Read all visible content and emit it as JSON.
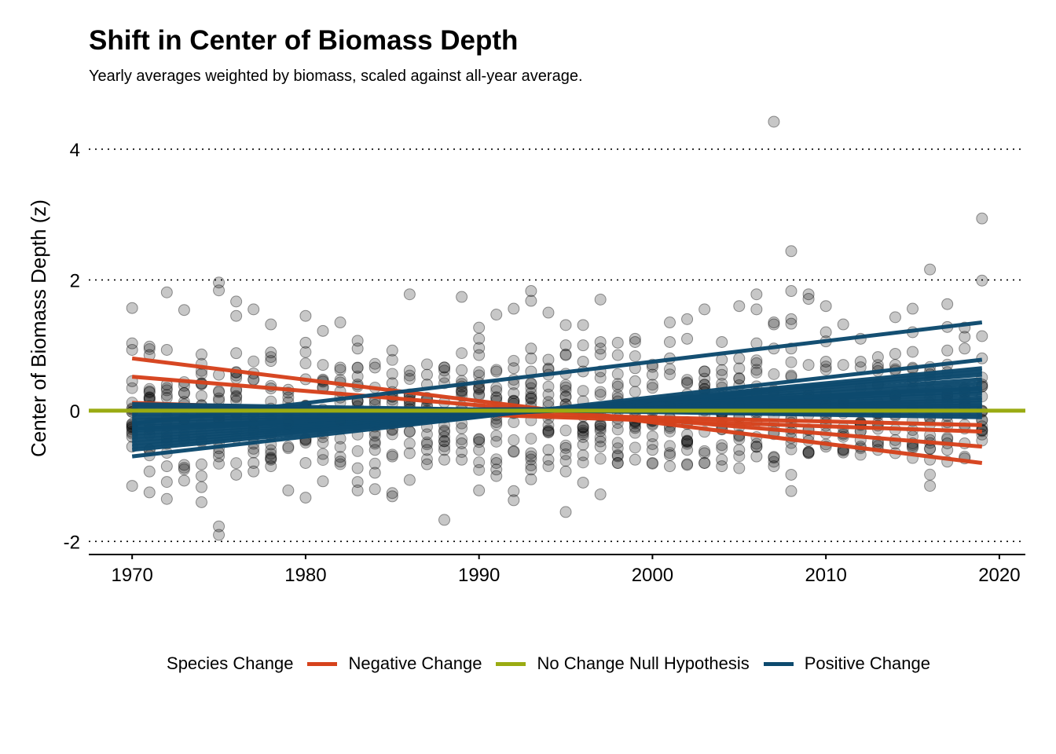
{
  "title": "Shift in Center of Biomass Depth",
  "subtitle": "Yearly averages weighted by biomass, scaled against all-year average.",
  "legend": {
    "title": "Species Change",
    "items": [
      {
        "label": "Negative Change",
        "color": "#d6421c"
      },
      {
        "label": "No Change Null Hypothesis",
        "color": "#9aab12"
      },
      {
        "label": "Positive Change",
        "color": "#0d4a6e"
      }
    ]
  },
  "chart_data": {
    "type": "scatter",
    "title": "Shift in Center of Biomass Depth",
    "subtitle": "Yearly averages weighted by biomass, scaled against all-year average.",
    "xlabel": "",
    "ylabel": "Center of Biomass Depth (z)",
    "xlim": [
      1967.5,
      2021.5
    ],
    "ylim": [
      -2.2,
      4.6
    ],
    "x_ticks": [
      1970,
      1980,
      1990,
      2000,
      2010,
      2020
    ],
    "x_tick_labels": [
      "1970",
      "1980",
      "1990",
      "2000",
      "2010",
      "2020"
    ],
    "y_ticks": [
      -2,
      0,
      2,
      4
    ],
    "y_tick_labels": [
      "-2",
      "0",
      "2",
      "4"
    ],
    "grid": "horizontal dotted",
    "legend_position": "bottom",
    "null_hypothesis": {
      "y": 0,
      "x": [
        1967.5,
        2021.5
      ],
      "color": "#9aab12"
    },
    "trend_lines": [
      {
        "group": "Negative Change",
        "color": "#d6421c",
        "x": [
          1970,
          2019
        ],
        "y": [
          0.8,
          -0.8
        ]
      },
      {
        "group": "Negative Change",
        "color": "#d6421c",
        "x": [
          1970,
          2019
        ],
        "y": [
          0.52,
          -0.55
        ]
      },
      {
        "group": "Negative Change",
        "color": "#d6421c",
        "x": [
          1970,
          2019
        ],
        "y": [
          0.12,
          -0.32
        ]
      },
      {
        "group": "Negative Change",
        "color": "#d6421c",
        "x": [
          1970,
          2019
        ],
        "y": [
          0.08,
          -0.22
        ]
      },
      {
        "group": "Positive Change",
        "color": "#0d4a6e",
        "x": [
          1970,
          2019
        ],
        "y": [
          -0.2,
          1.35
        ]
      },
      {
        "group": "Positive Change",
        "color": "#0d4a6e",
        "x": [
          1970,
          2019
        ],
        "y": [
          -0.7,
          0.78
        ]
      },
      {
        "group": "Positive Change",
        "color": "#0d4a6e",
        "x": [
          1970,
          2019
        ],
        "y": [
          -0.6,
          0.65
        ]
      },
      {
        "group": "Positive Change",
        "color": "#0d4a6e",
        "x": [
          1970,
          2019
        ],
        "y": [
          -0.5,
          0.55
        ]
      },
      {
        "group": "Positive Change",
        "color": "#0d4a6e",
        "x": [
          1970,
          2019
        ],
        "y": [
          -0.45,
          0.48
        ]
      },
      {
        "group": "Positive Change",
        "color": "#0d4a6e",
        "x": [
          1970,
          2019
        ],
        "y": [
          -0.4,
          0.42
        ]
      },
      {
        "group": "Positive Change",
        "color": "#0d4a6e",
        "x": [
          1970,
          2019
        ],
        "y": [
          -0.35,
          0.36
        ]
      },
      {
        "group": "Positive Change",
        "color": "#0d4a6e",
        "x": [
          1970,
          2019
        ],
        "y": [
          -0.3,
          0.3
        ]
      },
      {
        "group": "Positive Change",
        "color": "#0d4a6e",
        "x": [
          1970,
          2019
        ],
        "y": [
          -0.25,
          0.26
        ]
      },
      {
        "group": "Positive Change",
        "color": "#0d4a6e",
        "x": [
          1970,
          2019
        ],
        "y": [
          -0.2,
          0.2
        ]
      },
      {
        "group": "Positive Change",
        "color": "#0d4a6e",
        "x": [
          1970,
          2019
        ],
        "y": [
          -0.15,
          0.16
        ]
      },
      {
        "group": "Positive Change",
        "color": "#0d4a6e",
        "x": [
          1970,
          2019
        ],
        "y": [
          -0.1,
          0.12
        ]
      },
      {
        "group": "Positive Change",
        "color": "#0d4a6e",
        "x": [
          1970,
          2019
        ],
        "y": [
          -0.05,
          0.08
        ]
      },
      {
        "group": "Positive Change",
        "color": "#0d4a6e",
        "x": [
          1970,
          2019
        ],
        "y": [
          0.0,
          0.05
        ]
      },
      {
        "group": "Positive Change",
        "color": "#0d4a6e",
        "x": [
          1970,
          2019
        ],
        "y": [
          0.05,
          -0.05
        ]
      },
      {
        "group": "Positive Change",
        "color": "#0d4a6e",
        "x": [
          1970,
          2019
        ],
        "y": [
          0.1,
          -0.1
        ]
      },
      {
        "group": "Positive Change",
        "color": "#0d4a6e",
        "x": [
          1970,
          2019
        ],
        "y": [
          -0.55,
          0.6
        ]
      },
      {
        "group": "Positive Change",
        "color": "#0d4a6e",
        "x": [
          1970,
          2019
        ],
        "y": [
          -0.28,
          0.34
        ]
      }
    ],
    "points": [
      {
        "x": 1970,
        "y": 1.57
      },
      {
        "x": 1970,
        "y": 1.03
      },
      {
        "x": 1970,
        "y": 0.93
      },
      {
        "x": 1970,
        "y": 0.45
      },
      {
        "x": 1970,
        "y": -0.4
      },
      {
        "x": 1970,
        "y": -0.55
      },
      {
        "x": 1970,
        "y": -1.15
      },
      {
        "x": 1971,
        "y": 0.98
      },
      {
        "x": 1971,
        "y": 0.85
      },
      {
        "x": 1971,
        "y": 0.28
      },
      {
        "x": 1971,
        "y": -0.6
      },
      {
        "x": 1971,
        "y": -0.93
      },
      {
        "x": 1971,
        "y": -1.25
      },
      {
        "x": 1972,
        "y": 1.81
      },
      {
        "x": 1972,
        "y": 0.93
      },
      {
        "x": 1972,
        "y": 0.4
      },
      {
        "x": 1972,
        "y": -0.85
      },
      {
        "x": 1972,
        "y": -1.09
      },
      {
        "x": 1972,
        "y": -1.35
      },
      {
        "x": 1973,
        "y": 1.54
      },
      {
        "x": 1973,
        "y": 0.27
      },
      {
        "x": 1973,
        "y": -0.45
      },
      {
        "x": 1973,
        "y": -0.83
      },
      {
        "x": 1973,
        "y": -1.07
      },
      {
        "x": 1974,
        "y": 0.86
      },
      {
        "x": 1974,
        "y": 0.42
      },
      {
        "x": 1974,
        "y": -0.82
      },
      {
        "x": 1974,
        "y": -1.0
      },
      {
        "x": 1974,
        "y": -1.17
      },
      {
        "x": 1974,
        "y": -1.4
      },
      {
        "x": 1975,
        "y": 1.96
      },
      {
        "x": 1975,
        "y": 1.84
      },
      {
        "x": 1975,
        "y": 0.55
      },
      {
        "x": 1975,
        "y": -0.7
      },
      {
        "x": 1975,
        "y": -1.77
      },
      {
        "x": 1975,
        "y": -1.9
      },
      {
        "x": 1976,
        "y": 1.67
      },
      {
        "x": 1976,
        "y": 1.45
      },
      {
        "x": 1976,
        "y": 0.88
      },
      {
        "x": 1976,
        "y": 0.59
      },
      {
        "x": 1976,
        "y": 0.33
      },
      {
        "x": 1976,
        "y": -0.98
      },
      {
        "x": 1977,
        "y": 1.55
      },
      {
        "x": 1977,
        "y": 0.57
      },
      {
        "x": 1977,
        "y": -0.8
      },
      {
        "x": 1977,
        "y": -0.93
      },
      {
        "x": 1978,
        "y": 1.32
      },
      {
        "x": 1978,
        "y": 0.89
      },
      {
        "x": 1978,
        "y": 0.76
      },
      {
        "x": 1978,
        "y": 0.34
      },
      {
        "x": 1978,
        "y": -0.75
      },
      {
        "x": 1978,
        "y": -0.85
      },
      {
        "x": 1979,
        "y": 0.32
      },
      {
        "x": 1979,
        "y": -0.55
      },
      {
        "x": 1979,
        "y": -1.22
      },
      {
        "x": 1980,
        "y": 1.45
      },
      {
        "x": 1980,
        "y": 1.04
      },
      {
        "x": 1980,
        "y": 0.48
      },
      {
        "x": 1980,
        "y": -0.8
      },
      {
        "x": 1980,
        "y": -1.33
      },
      {
        "x": 1981,
        "y": 1.22
      },
      {
        "x": 1981,
        "y": 0.7
      },
      {
        "x": 1981,
        "y": 0.36
      },
      {
        "x": 1981,
        "y": -1.08
      },
      {
        "x": 1982,
        "y": 1.35
      },
      {
        "x": 1982,
        "y": 0.66
      },
      {
        "x": 1982,
        "y": 0.2
      },
      {
        "x": 1982,
        "y": -0.78
      },
      {
        "x": 1983,
        "y": 1.07
      },
      {
        "x": 1983,
        "y": 0.95
      },
      {
        "x": 1983,
        "y": 0.4
      },
      {
        "x": 1983,
        "y": -0.88
      },
      {
        "x": 1983,
        "y": -1.09
      },
      {
        "x": 1983,
        "y": -1.22
      },
      {
        "x": 1984,
        "y": 0.66
      },
      {
        "x": 1984,
        "y": -0.6
      },
      {
        "x": 1984,
        "y": -0.95
      },
      {
        "x": 1984,
        "y": -1.2
      },
      {
        "x": 1985,
        "y": 0.92
      },
      {
        "x": 1985,
        "y": 0.42
      },
      {
        "x": 1985,
        "y": -0.7
      },
      {
        "x": 1985,
        "y": -1.26
      },
      {
        "x": 1985,
        "y": -1.31
      },
      {
        "x": 1986,
        "y": 1.78
      },
      {
        "x": 1986,
        "y": 0.61
      },
      {
        "x": 1986,
        "y": 0.25
      },
      {
        "x": 1986,
        "y": -0.65
      },
      {
        "x": 1986,
        "y": -1.06
      },
      {
        "x": 1987,
        "y": 0.55
      },
      {
        "x": 1987,
        "y": 0.4
      },
      {
        "x": 1987,
        "y": -0.6
      },
      {
        "x": 1987,
        "y": -0.82
      },
      {
        "x": 1988,
        "y": 0.66
      },
      {
        "x": 1988,
        "y": -0.6
      },
      {
        "x": 1988,
        "y": -0.75
      },
      {
        "x": 1988,
        "y": -1.67
      },
      {
        "x": 1989,
        "y": 1.74
      },
      {
        "x": 1989,
        "y": 0.62
      },
      {
        "x": 1989,
        "y": -0.5
      },
      {
        "x": 1989,
        "y": -0.75
      },
      {
        "x": 1990,
        "y": 1.27
      },
      {
        "x": 1990,
        "y": 1.1
      },
      {
        "x": 1990,
        "y": 0.96
      },
      {
        "x": 1990,
        "y": 0.85
      },
      {
        "x": 1990,
        "y": -0.6
      },
      {
        "x": 1990,
        "y": -1.22
      },
      {
        "x": 1991,
        "y": 1.47
      },
      {
        "x": 1991,
        "y": 0.6
      },
      {
        "x": 1991,
        "y": -0.8
      },
      {
        "x": 1991,
        "y": -0.9
      },
      {
        "x": 1991,
        "y": -1.0
      },
      {
        "x": 1992,
        "y": 1.56
      },
      {
        "x": 1992,
        "y": 0.65
      },
      {
        "x": 1992,
        "y": -0.62
      },
      {
        "x": 1992,
        "y": -1.23
      },
      {
        "x": 1992,
        "y": -1.37
      },
      {
        "x": 1993,
        "y": 1.83
      },
      {
        "x": 1993,
        "y": 1.68
      },
      {
        "x": 1993,
        "y": 0.95
      },
      {
        "x": 1993,
        "y": 0.8
      },
      {
        "x": 1993,
        "y": 0.6
      },
      {
        "x": 1993,
        "y": -0.65
      },
      {
        "x": 1993,
        "y": -0.9
      },
      {
        "x": 1993,
        "y": -1.05
      },
      {
        "x": 1994,
        "y": 1.5
      },
      {
        "x": 1994,
        "y": 0.78
      },
      {
        "x": 1994,
        "y": 0.63
      },
      {
        "x": 1994,
        "y": -0.6
      },
      {
        "x": 1994,
        "y": -0.75
      },
      {
        "x": 1995,
        "y": 1.31
      },
      {
        "x": 1995,
        "y": 1.0
      },
      {
        "x": 1995,
        "y": 0.85
      },
      {
        "x": 1995,
        "y": -0.57
      },
      {
        "x": 1995,
        "y": -0.93
      },
      {
        "x": 1995,
        "y": -1.55
      },
      {
        "x": 1996,
        "y": 1.31
      },
      {
        "x": 1996,
        "y": 1.0
      },
      {
        "x": 1996,
        "y": 0.75
      },
      {
        "x": 1996,
        "y": 0.6
      },
      {
        "x": 1996,
        "y": -0.52
      },
      {
        "x": 1996,
        "y": -1.1
      },
      {
        "x": 1997,
        "y": 1.7
      },
      {
        "x": 1997,
        "y": 1.05
      },
      {
        "x": 1997,
        "y": 0.95
      },
      {
        "x": 1997,
        "y": 0.6
      },
      {
        "x": 1997,
        "y": -0.55
      },
      {
        "x": 1997,
        "y": -1.28
      },
      {
        "x": 1998,
        "y": 1.04
      },
      {
        "x": 1998,
        "y": 0.85
      },
      {
        "x": 1998,
        "y": -0.68
      },
      {
        "x": 1998,
        "y": -0.8
      },
      {
        "x": 1999,
        "y": 1.1
      },
      {
        "x": 1999,
        "y": 1.05
      },
      {
        "x": 1999,
        "y": 0.65
      },
      {
        "x": 1999,
        "y": 0.45
      },
      {
        "x": 1999,
        "y": -0.75
      },
      {
        "x": 2000,
        "y": 0.67
      },
      {
        "x": 2000,
        "y": 0.55
      },
      {
        "x": 2000,
        "y": -0.6
      },
      {
        "x": 2000,
        "y": -0.8
      },
      {
        "x": 2001,
        "y": 1.35
      },
      {
        "x": 2001,
        "y": 1.05
      },
      {
        "x": 2001,
        "y": 0.8
      },
      {
        "x": 2001,
        "y": -0.68
      },
      {
        "x": 2001,
        "y": -0.85
      },
      {
        "x": 2002,
        "y": 1.4
      },
      {
        "x": 2002,
        "y": 1.1
      },
      {
        "x": 2002,
        "y": -0.6
      },
      {
        "x": 2002,
        "y": -0.83
      },
      {
        "x": 2003,
        "y": 1.55
      },
      {
        "x": 2003,
        "y": 0.6
      },
      {
        "x": 2003,
        "y": -0.65
      },
      {
        "x": 2003,
        "y": -0.8
      },
      {
        "x": 2004,
        "y": 1.05
      },
      {
        "x": 2004,
        "y": 0.78
      },
      {
        "x": 2004,
        "y": 0.62
      },
      {
        "x": 2004,
        "y": -0.75
      },
      {
        "x": 2004,
        "y": -0.85
      },
      {
        "x": 2005,
        "y": 1.6
      },
      {
        "x": 2005,
        "y": 0.8
      },
      {
        "x": 2005,
        "y": -0.6
      },
      {
        "x": 2005,
        "y": -0.88
      },
      {
        "x": 2006,
        "y": 1.78
      },
      {
        "x": 2006,
        "y": 1.55
      },
      {
        "x": 2006,
        "y": 1.03
      },
      {
        "x": 2006,
        "y": -0.55
      },
      {
        "x": 2006,
        "y": -0.7
      },
      {
        "x": 2007,
        "y": 4.42
      },
      {
        "x": 2007,
        "y": 1.35
      },
      {
        "x": 2007,
        "y": 1.32
      },
      {
        "x": 2007,
        "y": 0.95
      },
      {
        "x": 2007,
        "y": -0.72
      },
      {
        "x": 2007,
        "y": -0.85
      },
      {
        "x": 2008,
        "y": 2.44
      },
      {
        "x": 2008,
        "y": 1.83
      },
      {
        "x": 2008,
        "y": 1.4
      },
      {
        "x": 2008,
        "y": 1.33
      },
      {
        "x": 2008,
        "y": 0.95
      },
      {
        "x": 2008,
        "y": -0.98
      },
      {
        "x": 2008,
        "y": -1.23
      },
      {
        "x": 2009,
        "y": 1.78
      },
      {
        "x": 2009,
        "y": 1.71
      },
      {
        "x": 2009,
        "y": 0.7
      },
      {
        "x": 2009,
        "y": -0.65
      },
      {
        "x": 2010,
        "y": 1.6
      },
      {
        "x": 2010,
        "y": 1.2
      },
      {
        "x": 2010,
        "y": 1.06
      },
      {
        "x": 2010,
        "y": 0.75
      },
      {
        "x": 2010,
        "y": -0.55
      },
      {
        "x": 2011,
        "y": 1.32
      },
      {
        "x": 2011,
        "y": 0.7
      },
      {
        "x": 2011,
        "y": -0.64
      },
      {
        "x": 2012,
        "y": 1.1
      },
      {
        "x": 2012,
        "y": 0.75
      },
      {
        "x": 2012,
        "y": -0.45
      },
      {
        "x": 2012,
        "y": -0.55
      },
      {
        "x": 2013,
        "y": 0.82
      },
      {
        "x": 2013,
        "y": 0.65
      },
      {
        "x": 2013,
        "y": -0.5
      },
      {
        "x": 2013,
        "y": -0.6
      },
      {
        "x": 2014,
        "y": 1.43
      },
      {
        "x": 2014,
        "y": 0.87
      },
      {
        "x": 2014,
        "y": 0.7
      },
      {
        "x": 2014,
        "y": -0.45
      },
      {
        "x": 2014,
        "y": -0.65
      },
      {
        "x": 2015,
        "y": 1.56
      },
      {
        "x": 2015,
        "y": 1.2
      },
      {
        "x": 2015,
        "y": 0.9
      },
      {
        "x": 2015,
        "y": -0.5
      },
      {
        "x": 2015,
        "y": -0.55
      },
      {
        "x": 2016,
        "y": 2.16
      },
      {
        "x": 2016,
        "y": 0.6
      },
      {
        "x": 2016,
        "y": -0.58
      },
      {
        "x": 2016,
        "y": -0.75
      },
      {
        "x": 2016,
        "y": -1.15
      },
      {
        "x": 2017,
        "y": 1.63
      },
      {
        "x": 2017,
        "y": 1.28
      },
      {
        "x": 2017,
        "y": 0.92
      },
      {
        "x": 2017,
        "y": -0.5
      },
      {
        "x": 2017,
        "y": -0.6
      },
      {
        "x": 2017,
        "y": -0.78
      },
      {
        "x": 2018,
        "y": 1.27
      },
      {
        "x": 2018,
        "y": 1.13
      },
      {
        "x": 2018,
        "y": 0.95
      },
      {
        "x": 2018,
        "y": -0.5
      },
      {
        "x": 2018,
        "y": -0.73
      },
      {
        "x": 2019,
        "y": 2.94
      },
      {
        "x": 2019,
        "y": 1.99
      },
      {
        "x": 2019,
        "y": 1.14
      },
      {
        "x": 2019,
        "y": 0.8
      },
      {
        "x": 2019,
        "y": 0.4
      },
      {
        "x": 2019,
        "y": -0.3
      }
    ]
  }
}
